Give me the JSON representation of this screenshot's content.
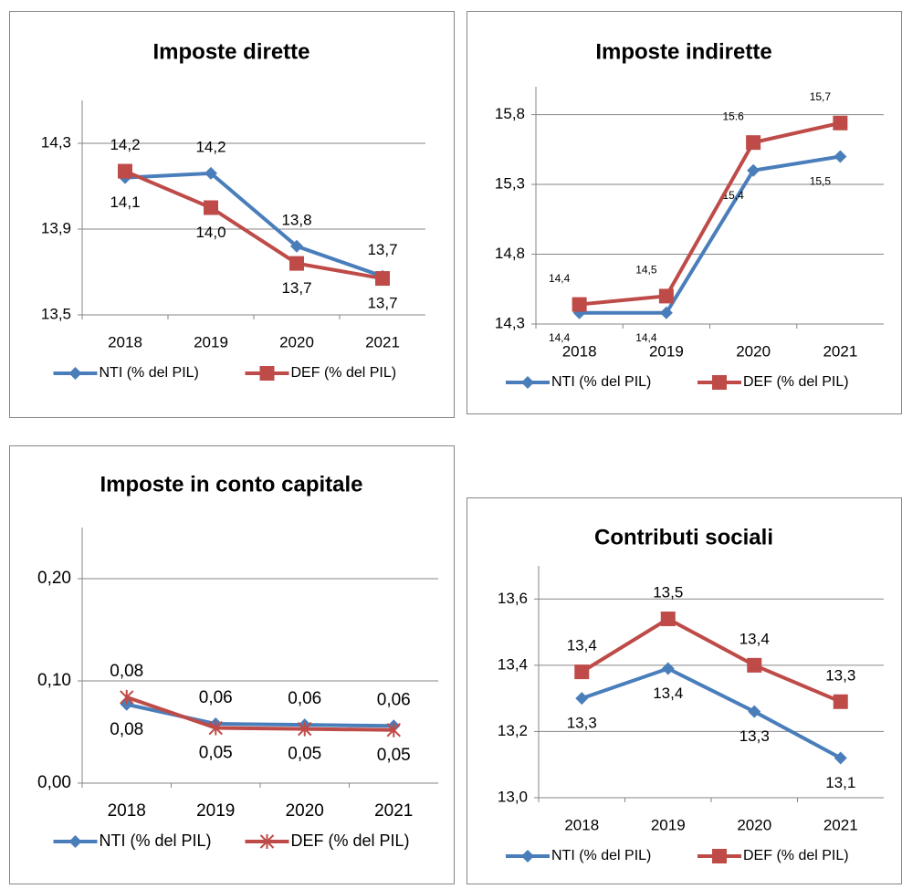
{
  "chart_data": [
    {
      "type": "line",
      "title": "Imposte dirette",
      "categories": [
        "2018",
        "2019",
        "2020",
        "2021"
      ],
      "ylim": [
        13.5,
        14.5
      ],
      "yticks": [
        {
          "value": 13.5,
          "label": "13,5"
        },
        {
          "value": 13.9,
          "label": "13,9"
        },
        {
          "value": 14.3,
          "label": "14,3"
        }
      ],
      "grid": true,
      "series": [
        {
          "name": "NTI (% del PIL)",
          "color": "#4a7ebb",
          "marker": "diamond",
          "values": [
            14.14,
            14.16,
            13.82,
            13.68
          ],
          "value_labels": [
            "14,1",
            "14,2",
            "13,8",
            "13,7"
          ]
        },
        {
          "name": "DEF (% del PIL)",
          "color": "#be4b48",
          "marker": "square",
          "values": [
            14.17,
            14.0,
            13.74,
            13.67
          ],
          "value_labels": [
            "14,2",
            "14,0",
            "13,7",
            "13,7"
          ]
        }
      ]
    },
    {
      "type": "line",
      "title": "Imposte indirette",
      "categories": [
        "2018",
        "2019",
        "2020",
        "2021"
      ],
      "ylim": [
        14.3,
        16.0
      ],
      "yticks": [
        {
          "value": 14.3,
          "label": "14,3"
        },
        {
          "value": 14.8,
          "label": "14,8"
        },
        {
          "value": 15.3,
          "label": "15,3"
        },
        {
          "value": 15.8,
          "label": "15,8"
        }
      ],
      "grid": true,
      "series": [
        {
          "name": "NTI (% del PIL)",
          "color": "#4a7ebb",
          "marker": "diamond",
          "values": [
            14.38,
            14.38,
            15.4,
            15.5
          ],
          "value_labels": [
            "14,4",
            "14,4",
            "15,4",
            "15,5"
          ]
        },
        {
          "name": "DEF (% del PIL)",
          "color": "#be4b48",
          "marker": "square",
          "values": [
            14.44,
            14.5,
            15.6,
            15.74
          ],
          "value_labels": [
            "14,4",
            "14,5",
            "15.6",
            "15,7"
          ]
        }
      ]
    },
    {
      "type": "line",
      "title": "Imposte in conto capitale",
      "categories": [
        "2018",
        "2019",
        "2020",
        "2021"
      ],
      "ylim": [
        0,
        0.25
      ],
      "yticks": [
        {
          "value": 0,
          "label": "0,00"
        },
        {
          "value": 0.1,
          "label": "0,10"
        },
        {
          "value": 0.2,
          "label": "0,20"
        }
      ],
      "grid": true,
      "series": [
        {
          "name": "NTI (% del PIL)",
          "color": "#4a7ebb",
          "marker": "diamond",
          "values": [
            0.077,
            0.058,
            0.057,
            0.056
          ],
          "value_labels": [
            "0,08",
            "0,06",
            "0,06",
            "0,06"
          ]
        },
        {
          "name": "DEF (% del PIL)",
          "color": "#be4b48",
          "marker": "asterisk",
          "values": [
            0.084,
            0.054,
            0.053,
            0.052
          ],
          "value_labels": [
            "0,08",
            "0,05",
            "0,05",
            "0,05"
          ]
        }
      ]
    },
    {
      "type": "line",
      "title": "Contributi sociali",
      "categories": [
        "2018",
        "2019",
        "2020",
        "2021"
      ],
      "ylim": [
        13.0,
        13.7
      ],
      "yticks": [
        {
          "value": 13.0,
          "label": "13,0"
        },
        {
          "value": 13.2,
          "label": "13,2"
        },
        {
          "value": 13.4,
          "label": "13,4"
        },
        {
          "value": 13.6,
          "label": "13,6"
        }
      ],
      "grid": true,
      "series": [
        {
          "name": "NTI (% del PIL)",
          "color": "#4a7ebb",
          "marker": "diamond",
          "values": [
            13.3,
            13.39,
            13.26,
            13.12
          ],
          "value_labels": [
            "13,3",
            "13,4",
            "13,3",
            "13,1"
          ]
        },
        {
          "name": "DEF (% del PIL)",
          "color": "#be4b48",
          "marker": "square",
          "values": [
            13.38,
            13.54,
            13.4,
            13.29
          ],
          "value_labels": [
            "13,4",
            "13,5",
            "13,4",
            "13,3"
          ]
        }
      ]
    }
  ]
}
